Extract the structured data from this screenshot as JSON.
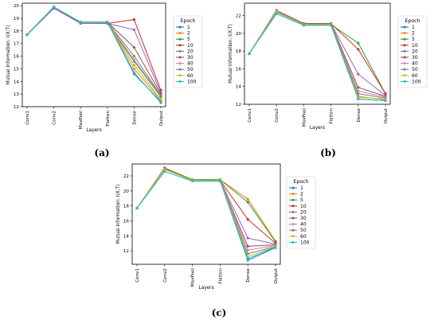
{
  "captions": [
    "(a)",
    "(b)",
    "(c)"
  ],
  "colors": [
    "#1f77b4",
    "#ff7f0e",
    "#2ca02c",
    "#d62728",
    "#9467bd",
    "#8c564b",
    "#e377c2",
    "#7f7f7f",
    "#bcbd22",
    "#17becf"
  ],
  "chart_data": [
    {
      "type": "line",
      "panel": "(a)",
      "xlabel": "Layers",
      "ylabel": "Mutual Information: I(X;T)",
      "categories": [
        "Conv1",
        "Conv2",
        "MaxPool",
        "Flatten",
        "Dense",
        "Output"
      ],
      "ylim": [
        12,
        20.2
      ],
      "yticks": [
        12,
        13,
        14,
        15,
        16,
        17,
        18,
        19,
        20
      ],
      "legend_title": "Epoch",
      "legend_placement": "right",
      "series": [
        {
          "name": "1",
          "values": [
            17.7,
            19.9,
            18.7,
            18.7,
            14.6,
            12.4
          ]
        },
        {
          "name": "2",
          "values": [
            17.7,
            19.9,
            18.7,
            18.7,
            15.0,
            12.5
          ]
        },
        {
          "name": "5",
          "values": [
            17.7,
            19.9,
            18.6,
            18.6,
            15.6,
            12.8
          ]
        },
        {
          "name": "10",
          "values": [
            17.7,
            19.8,
            18.6,
            18.6,
            18.9,
            13.3
          ]
        },
        {
          "name": "20",
          "values": [
            17.7,
            19.8,
            18.6,
            18.6,
            18.1,
            13.1
          ]
        },
        {
          "name": "30",
          "values": [
            17.7,
            19.9,
            18.7,
            18.7,
            16.7,
            13.0
          ]
        },
        {
          "name": "40",
          "values": [
            17.7,
            19.9,
            18.7,
            18.7,
            15.7,
            12.9
          ]
        },
        {
          "name": "50",
          "values": [
            17.7,
            19.9,
            18.7,
            18.7,
            16.0,
            12.9
          ]
        },
        {
          "name": "60",
          "values": [
            17.7,
            19.9,
            18.7,
            18.7,
            15.3,
            12.6
          ]
        },
        {
          "name": "100",
          "values": [
            17.7,
            19.9,
            18.7,
            18.7,
            14.7,
            12.3
          ]
        }
      ]
    },
    {
      "type": "line",
      "panel": "(b)",
      "xlabel": "Layers",
      "ylabel": "Mutual Information: I(X;T)",
      "categories": [
        "Conv1",
        "Conv2",
        "MaxPool",
        "Flatten",
        "Dense",
        "Output"
      ],
      "ylim": [
        12,
        23.4
      ],
      "yticks": [
        12,
        14,
        16,
        18,
        20,
        22
      ],
      "legend_title": "Epoch",
      "legend_placement": "right",
      "series": [
        {
          "name": "1",
          "values": [
            17.7,
            22.4,
            21.0,
            21.0,
            12.6,
            12.4
          ]
        },
        {
          "name": "2",
          "values": [
            17.7,
            22.5,
            21.0,
            21.0,
            12.9,
            12.5
          ]
        },
        {
          "name": "5",
          "values": [
            17.7,
            22.5,
            21.0,
            21.0,
            18.9,
            13.2
          ]
        },
        {
          "name": "10",
          "values": [
            17.7,
            22.6,
            21.1,
            21.1,
            18.2,
            13.2
          ]
        },
        {
          "name": "20",
          "values": [
            17.7,
            22.6,
            21.1,
            21.1,
            15.4,
            13.0
          ]
        },
        {
          "name": "30",
          "values": [
            17.7,
            22.5,
            21.1,
            21.1,
            13.9,
            12.9
          ]
        },
        {
          "name": "40",
          "values": [
            17.7,
            22.4,
            21.0,
            21.0,
            13.5,
            12.8
          ]
        },
        {
          "name": "50",
          "values": [
            17.7,
            22.4,
            21.0,
            21.0,
            13.2,
            12.7
          ]
        },
        {
          "name": "60",
          "values": [
            17.7,
            22.5,
            21.0,
            21.0,
            12.8,
            12.6
          ]
        },
        {
          "name": "100",
          "values": [
            17.7,
            22.2,
            20.9,
            20.9,
            12.6,
            12.4
          ]
        }
      ]
    },
    {
      "type": "line",
      "panel": "(c)",
      "xlabel": "Layers",
      "ylabel": "Mutual Information: I(X;T)",
      "categories": [
        "Conv1",
        "Conv2",
        "MaxPool",
        "Flatten",
        "Dense",
        "Output"
      ],
      "ylim": [
        10.2,
        23.6
      ],
      "yticks": [
        12,
        14,
        16,
        18,
        20,
        22
      ],
      "legend_title": "Epoch",
      "legend_placement": "right",
      "series": [
        {
          "name": "1",
          "values": [
            17.7,
            22.9,
            21.4,
            21.4,
            10.9,
            12.5
          ]
        },
        {
          "name": "2",
          "values": [
            17.7,
            23.1,
            21.5,
            21.5,
            18.9,
            13.3
          ]
        },
        {
          "name": "5",
          "values": [
            17.7,
            23.0,
            21.5,
            21.5,
            18.5,
            13.2
          ]
        },
        {
          "name": "10",
          "values": [
            17.7,
            22.9,
            21.4,
            21.4,
            16.2,
            13.0
          ]
        },
        {
          "name": "20",
          "values": [
            17.7,
            23.0,
            21.4,
            21.4,
            13.7,
            12.9
          ]
        },
        {
          "name": "30",
          "values": [
            17.7,
            23.0,
            21.4,
            21.4,
            12.6,
            12.8
          ]
        },
        {
          "name": "40",
          "values": [
            17.7,
            22.9,
            21.4,
            21.4,
            12.1,
            12.7
          ]
        },
        {
          "name": "50",
          "values": [
            17.7,
            22.9,
            21.4,
            21.4,
            11.6,
            12.6
          ]
        },
        {
          "name": "60",
          "values": [
            17.7,
            22.9,
            21.4,
            21.4,
            11.2,
            12.6
          ]
        },
        {
          "name": "100",
          "values": [
            17.7,
            22.6,
            21.3,
            21.3,
            10.7,
            12.4
          ]
        }
      ]
    }
  ]
}
